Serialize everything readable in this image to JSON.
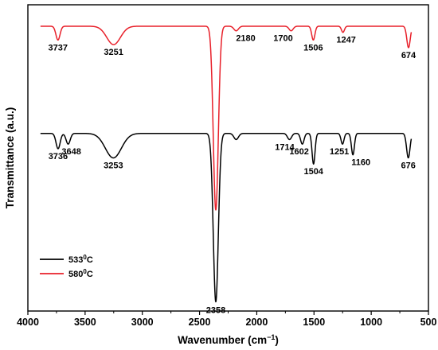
{
  "chart_data": {
    "type": "line",
    "xlabel": "Wavenumber (cm",
    "xlabel_sup": "−1",
    "xlabel_tail": ")",
    "ylabel": "Transmittance (a.u.)",
    "xlim": [
      4000,
      500
    ],
    "ylim": [
      0,
      1
    ],
    "x_ticks": [
      4000,
      3500,
      3000,
      2500,
      2000,
      1500,
      1000,
      500
    ],
    "grid": false,
    "legend_position": "lower-left",
    "series": [
      {
        "name": "533",
        "name_sup": "0",
        "name_tail": "C",
        "color": "#000000",
        "baseline": 0.58,
        "peaks": [
          {
            "x": 3736,
            "depth": 0.05,
            "width": 18
          },
          {
            "x": 3648,
            "depth": 0.035,
            "width": 18
          },
          {
            "x": 3253,
            "depth": 0.08,
            "width": 70
          },
          {
            "x": 2358,
            "depth": 0.55,
            "width": 22
          },
          {
            "x": 2180,
            "depth": 0.02,
            "width": 20
          },
          {
            "x": 1714,
            "depth": 0.02,
            "width": 18
          },
          {
            "x": 1602,
            "depth": 0.035,
            "width": 15
          },
          {
            "x": 1504,
            "depth": 0.1,
            "width": 13
          },
          {
            "x": 1251,
            "depth": 0.035,
            "width": 13
          },
          {
            "x": 1160,
            "depth": 0.07,
            "width": 13
          },
          {
            "x": 676,
            "depth": 0.08,
            "width": 15
          }
        ],
        "labels": [
          {
            "x": 3736,
            "text": "3736"
          },
          {
            "x": 3648,
            "text": "3648"
          },
          {
            "x": 3253,
            "text": "3253"
          },
          {
            "x": 2358,
            "text": "2358"
          },
          {
            "x": 1714,
            "text": "1714"
          },
          {
            "x": 1602,
            "text": "1602"
          },
          {
            "x": 1504,
            "text": "1504"
          },
          {
            "x": 1251,
            "text": "1251"
          },
          {
            "x": 1160,
            "text": "1160"
          },
          {
            "x": 676,
            "text": "676"
          }
        ]
      },
      {
        "name": "580",
        "name_sup": "0",
        "name_tail": "C",
        "color": "#e8202a",
        "baseline": 0.93,
        "peaks": [
          {
            "x": 3737,
            "depth": 0.045,
            "width": 18
          },
          {
            "x": 3251,
            "depth": 0.06,
            "width": 60
          },
          {
            "x": 2358,
            "depth": 0.6,
            "width": 22
          },
          {
            "x": 2180,
            "depth": 0.015,
            "width": 20
          },
          {
            "x": 1700,
            "depth": 0.015,
            "width": 18
          },
          {
            "x": 1506,
            "depth": 0.045,
            "width": 14
          },
          {
            "x": 1247,
            "depth": 0.02,
            "width": 13
          },
          {
            "x": 674,
            "depth": 0.07,
            "width": 15
          }
        ],
        "labels": [
          {
            "x": 3737,
            "text": "3737"
          },
          {
            "x": 3251,
            "text": "3251"
          },
          {
            "x": 2180,
            "text": "2180"
          },
          {
            "x": 1700,
            "text": "1700"
          },
          {
            "x": 1506,
            "text": "1506"
          },
          {
            "x": 1247,
            "text": "1247"
          },
          {
            "x": 674,
            "text": "674"
          }
        ]
      }
    ]
  }
}
